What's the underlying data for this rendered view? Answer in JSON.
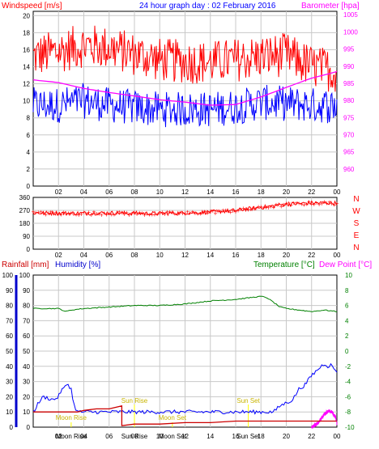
{
  "chart_data": [
    {
      "type": "line",
      "title": "24 hour graph day : 02 February 2016",
      "ylabel_left": "Windspeed [m/s]",
      "ylabel_right": "Barometer [hpa]",
      "x_tick_labels": [
        "02",
        "04",
        "06",
        "08",
        "10",
        "12",
        "14",
        "16",
        "18",
        "20",
        "22",
        "00"
      ],
      "y_left_ticks": [
        "0",
        "2",
        "4",
        "6",
        "8",
        "10",
        "12",
        "14",
        "16",
        "18",
        "20"
      ],
      "y_right_ticks": [
        "960",
        "965",
        "970",
        "975",
        "980",
        "985",
        "990",
        "995",
        "1000",
        "1005"
      ],
      "ylim_left": [
        0,
        20.5
      ],
      "ylim_right": [
        955,
        1006
      ],
      "grid": true,
      "colors": {
        "gust": "#ff0000",
        "wind": "#0000ff",
        "barometer": "#ff00ff"
      },
      "x_hours": [
        0,
        2,
        4,
        6,
        8,
        10,
        12,
        14,
        16,
        18,
        20,
        22,
        24
      ],
      "series": [
        {
          "key": "gust",
          "values": [
            15.2,
            15.8,
            16.5,
            16.2,
            15.5,
            14.8,
            14.6,
            14.5,
            14.8,
            15.2,
            15.4,
            14.0,
            13.5
          ]
        },
        {
          "key": "wind",
          "values": [
            9.5,
            9.5,
            10.0,
            9.5,
            9.2,
            9.0,
            9.0,
            9.0,
            9.3,
            9.8,
            9.7,
            9.5,
            9.4
          ]
        },
        {
          "key": "barometer",
          "values": [
            986.0,
            985.2,
            983.5,
            982.3,
            981.3,
            980.2,
            979.5,
            978.6,
            978.8,
            981.0,
            983.8,
            986.5,
            988.4
          ]
        }
      ]
    },
    {
      "type": "scatter",
      "ylabel_right_stack": [
        "N",
        "W",
        "S",
        "E",
        "N"
      ],
      "y_ticks": [
        "0",
        "90",
        "180",
        "270",
        "360"
      ],
      "x_tick_labels": [
        "02",
        "04",
        "06",
        "08",
        "10",
        "12",
        "14",
        "16",
        "18",
        "20",
        "22",
        "00"
      ],
      "ylim": [
        0,
        360
      ],
      "grid": true,
      "colors": {
        "direction": "#ff0000"
      },
      "x_hours": [
        0,
        2,
        4,
        6,
        8,
        10,
        12,
        14,
        16,
        18,
        20,
        22,
        24
      ],
      "series": [
        {
          "key": "direction",
          "values": [
            252,
            250,
            250,
            252,
            250,
            248,
            252,
            258,
            270,
            290,
            312,
            322,
            320
          ]
        }
      ]
    },
    {
      "type": "line",
      "ylabel_left_a": "Rainfall [mm]",
      "ylabel_left_b": "Humidity [%]",
      "ylabel_right_a": "Temperature [°C]",
      "ylabel_right_b": "Dew Point [°C]",
      "y_left_outer_ticks": [
        "0",
        "10",
        "20",
        "30",
        "40",
        "50",
        "60",
        "70",
        "80",
        "90",
        "100"
      ],
      "y_left_inner_ticks": [
        "0",
        "10",
        "20",
        "30",
        "40",
        "50",
        "60",
        "70",
        "80",
        "90",
        "100"
      ],
      "y_right_ticks": [
        "-10",
        "-8",
        "-6",
        "-4",
        "-2",
        "0",
        "2",
        "4",
        "6",
        "8",
        "10"
      ],
      "x_tick_labels": [
        "02",
        "04",
        "06",
        "08",
        "10",
        "12",
        "14",
        "16",
        "18",
        "20",
        "22",
        "00"
      ],
      "ylim_left": [
        0,
        100
      ],
      "ylim_right": [
        -10,
        10
      ],
      "grid": true,
      "colors": {
        "humidity": "#008000",
        "temperature": "#ff0000",
        "dewpoint": "#ff00ff",
        "rain": "#0000ff",
        "rain_bars": "#cc0000",
        "events": "#ffff00"
      },
      "events": [
        {
          "label": "Moon Rise",
          "hour": 3.0
        },
        {
          "label": "Sun Rise",
          "hour": 8.0
        },
        {
          "label": "Moon Set",
          "hour": 11.0
        },
        {
          "label": "Sun Set",
          "hour": 17.0
        }
      ],
      "series": [
        {
          "key": "humidity",
          "x": [
            0,
            1,
            2,
            2.6,
            3,
            4,
            6,
            8,
            10,
            12,
            14,
            16,
            18,
            18.5,
            19,
            19.5,
            20,
            21,
            22,
            23,
            24
          ],
          "values": [
            78,
            78,
            78,
            76,
            77,
            78,
            79,
            80,
            80,
            81,
            83,
            84,
            86,
            85,
            82,
            79,
            78,
            77,
            76,
            77,
            76
          ]
        },
        {
          "key": "rain",
          "x": [
            0,
            0.5,
            0.8,
            1.2,
            1.6,
            2.0,
            2.2,
            2.5,
            2.7,
            3.0,
            3.2,
            3.5,
            17,
            19,
            19.5,
            20.5,
            21,
            21.5,
            22,
            22.5,
            23,
            23.3,
            23.5,
            23.7,
            24
          ],
          "values": [
            10,
            17,
            20,
            19,
            18,
            20,
            24,
            26,
            29,
            25,
            15,
            10,
            10,
            10,
            14,
            18,
            25,
            28,
            34,
            38,
            42,
            40,
            41,
            39,
            37
          ]
        },
        {
          "key": "rain_bars",
          "x": [
            0,
            3.5,
            4,
            5,
            6,
            7,
            7,
            8,
            10,
            12,
            14,
            16,
            18,
            20,
            22,
            24
          ],
          "values": [
            10,
            10,
            11,
            12,
            12,
            14,
            1,
            2,
            2,
            3,
            3,
            4,
            4,
            4,
            4,
            4
          ]
        },
        {
          "key": "dewpoint",
          "x": [
            22,
            22.5,
            23,
            23.3,
            23.6,
            23.9,
            24
          ],
          "values": [
            -10,
            -9.5,
            -8.3,
            -7.9,
            -8.0,
            -8.7,
            -9.5
          ]
        }
      ]
    }
  ]
}
